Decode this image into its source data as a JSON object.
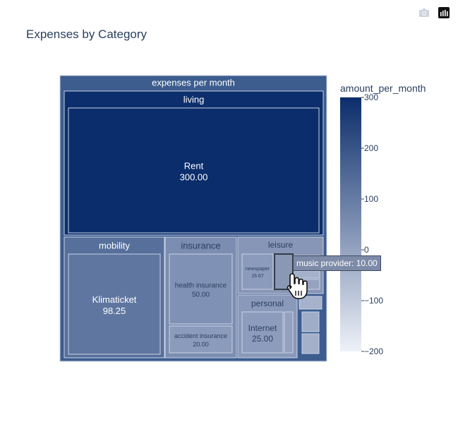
{
  "title": "Expenses by Category",
  "modebar": {
    "camera_icon": "camera-icon",
    "plotly_logo_icon": "plotly-logo-icon"
  },
  "tooltip": {
    "text": "music provider: 10.00"
  },
  "colorbar": {
    "title": "amount_per_month",
    "ticks": [
      "300",
      "200",
      "100",
      "0",
      "−100",
      "−200"
    ],
    "colorscale": [
      "#eef1f8",
      "#0b2d6b"
    ]
  },
  "chart_data": {
    "type": "treemap",
    "title": "Expenses by Category",
    "root": "expenses per month",
    "value_key": "amount_per_month",
    "colorbar_range": [
      -200,
      300
    ],
    "nodes": [
      {
        "id": "root",
        "label": "expenses per month",
        "parent": ""
      },
      {
        "id": "living",
        "label": "living",
        "parent": "root"
      },
      {
        "id": "rent",
        "label": "Rent",
        "value": 300.0,
        "value_text": "300.00",
        "parent": "living"
      },
      {
        "id": "mobility",
        "label": "mobility",
        "parent": "root"
      },
      {
        "id": "klimaticket",
        "label": "Klimaticket",
        "value": 98.25,
        "value_text": "98.25",
        "parent": "mobility"
      },
      {
        "id": "insurance",
        "label": "insurance",
        "parent": "root"
      },
      {
        "id": "health",
        "label": "health insurance",
        "value": 50.0,
        "value_text": "50.00",
        "parent": "insurance"
      },
      {
        "id": "accident",
        "label": "accident insurance",
        "value": 20.0,
        "value_text": "20.00",
        "parent": "insurance"
      },
      {
        "id": "leisure",
        "label": "leisure",
        "parent": "root"
      },
      {
        "id": "newspaper",
        "label": "newspaper",
        "value": 16.67,
        "value_text": "16.67",
        "parent": "leisure"
      },
      {
        "id": "music",
        "label": "music provider",
        "value": 10.0,
        "value_text": "10.00",
        "parent": "leisure"
      },
      {
        "id": "personal",
        "label": "personal",
        "parent": "root"
      },
      {
        "id": "internet",
        "label": "Internet",
        "value": 25.0,
        "value_text": "25.00",
        "parent": "personal"
      }
    ]
  }
}
